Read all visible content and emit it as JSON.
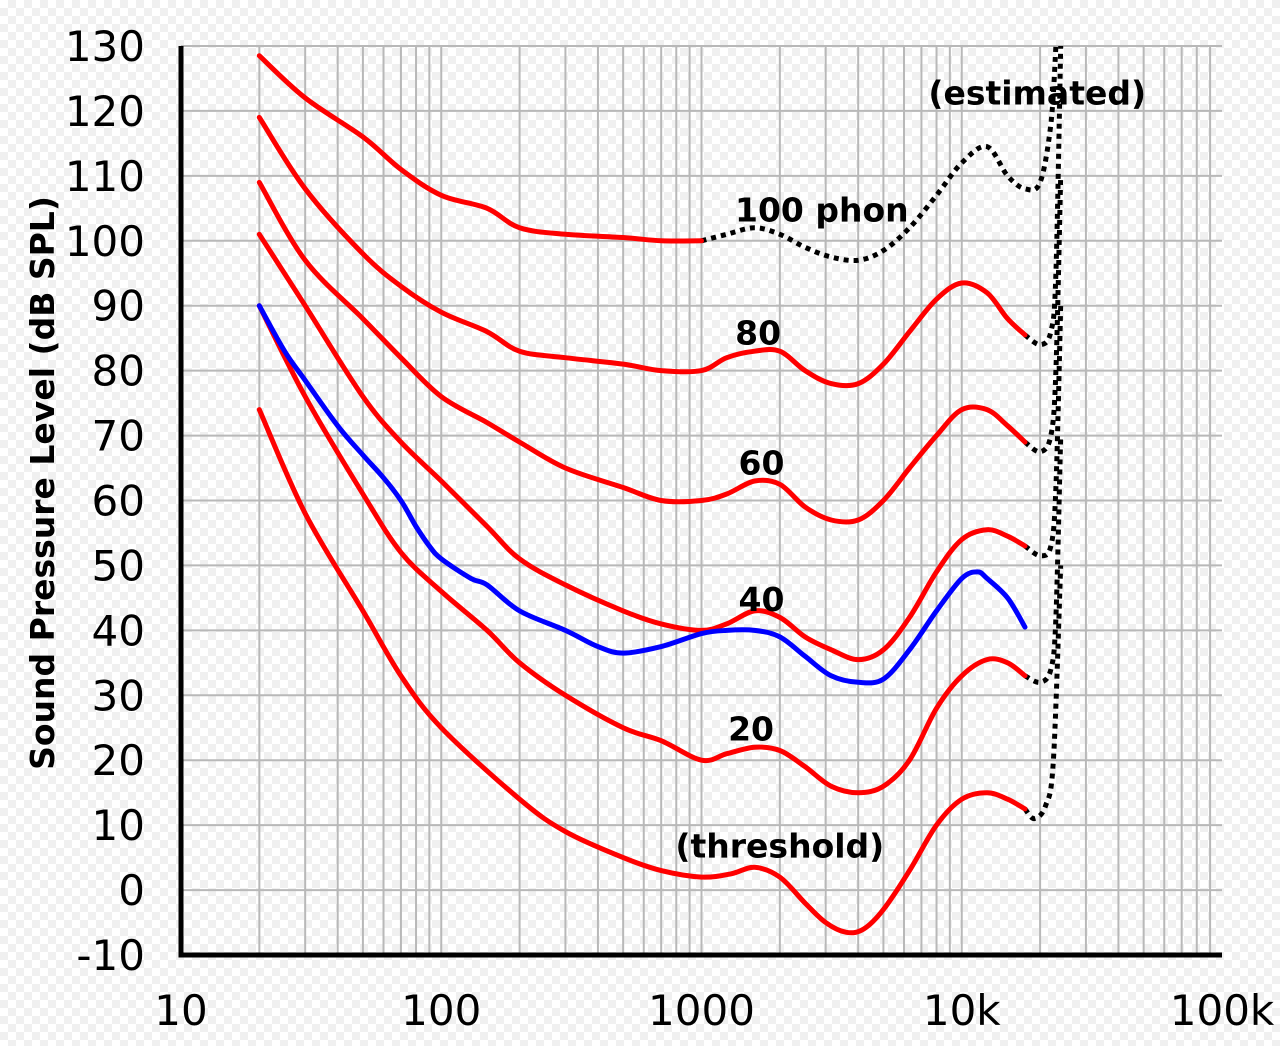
{
  "chart_data": {
    "type": "line",
    "title": "",
    "xlabel": "",
    "ylabel": "Sound Pressure Level (dB SPL)",
    "x_scale": "log",
    "xlim": [
      10,
      100000
    ],
    "ylim": [
      -10,
      130
    ],
    "grid": true,
    "x_ticks": [
      {
        "value": 10,
        "label": "10"
      },
      {
        "value": 100,
        "label": "100"
      },
      {
        "value": 1000,
        "label": "1000"
      },
      {
        "value": 10000,
        "label": "10k"
      },
      {
        "value": 100000,
        "label": "100k"
      }
    ],
    "y_ticks": [
      {
        "value": 130,
        "label": "130"
      },
      {
        "value": 120,
        "label": "120"
      },
      {
        "value": 110,
        "label": "110"
      },
      {
        "value": 100,
        "label": "100"
      },
      {
        "value": 90,
        "label": "90"
      },
      {
        "value": 80,
        "label": "80"
      },
      {
        "value": 70,
        "label": "70"
      },
      {
        "value": 60,
        "label": "60"
      },
      {
        "value": 50,
        "label": "50"
      },
      {
        "value": 40,
        "label": "40"
      },
      {
        "value": 30,
        "label": "30"
      },
      {
        "value": 20,
        "label": "20"
      },
      {
        "value": 10,
        "label": "10"
      },
      {
        "value": 0,
        "label": "0"
      },
      {
        "value": -10,
        "label": "-10"
      }
    ],
    "series": [
      {
        "name": "threshold",
        "color": "#ff0000",
        "points": [
          [
            20,
            74
          ],
          [
            30,
            58
          ],
          [
            50,
            43
          ],
          [
            70,
            33
          ],
          [
            100,
            25
          ],
          [
            200,
            14
          ],
          [
            300,
            9
          ],
          [
            500,
            5
          ],
          [
            700,
            3
          ],
          [
            1000,
            2
          ],
          [
            1300,
            2.5
          ],
          [
            1600,
            3.5
          ],
          [
            2000,
            2
          ],
          [
            2500,
            -2
          ],
          [
            3000,
            -5
          ],
          [
            3600,
            -6.5
          ],
          [
            4200,
            -6
          ],
          [
            5000,
            -3
          ],
          [
            6300,
            3
          ],
          [
            8000,
            10
          ],
          [
            10000,
            14
          ],
          [
            12500,
            15
          ],
          [
            15000,
            14
          ],
          [
            17500,
            12.5
          ]
        ]
      },
      {
        "name": "20 phon",
        "color": "#ff0000",
        "points": [
          [
            20,
            90
          ],
          [
            30,
            76
          ],
          [
            50,
            61
          ],
          [
            70,
            52
          ],
          [
            100,
            46
          ],
          [
            150,
            40
          ],
          [
            200,
            35
          ],
          [
            300,
            30
          ],
          [
            500,
            25
          ],
          [
            700,
            23
          ],
          [
            1000,
            20
          ],
          [
            1250,
            21
          ],
          [
            1600,
            22
          ],
          [
            2000,
            21.5
          ],
          [
            2500,
            19
          ],
          [
            3150,
            16
          ],
          [
            4000,
            15
          ],
          [
            5000,
            16
          ],
          [
            6300,
            20
          ],
          [
            8000,
            28
          ],
          [
            10000,
            33
          ],
          [
            12500,
            35.5
          ],
          [
            15000,
            35
          ],
          [
            17500,
            33
          ]
        ]
      },
      {
        "name": "40 phon",
        "color": "#ff0000",
        "points": [
          [
            20,
            101
          ],
          [
            30,
            90
          ],
          [
            50,
            76
          ],
          [
            70,
            69
          ],
          [
            100,
            63
          ],
          [
            150,
            56
          ],
          [
            200,
            51
          ],
          [
            300,
            47
          ],
          [
            500,
            43
          ],
          [
            700,
            41
          ],
          [
            1000,
            40
          ],
          [
            1250,
            41
          ],
          [
            1600,
            43
          ],
          [
            2000,
            42
          ],
          [
            2500,
            39
          ],
          [
            3150,
            37
          ],
          [
            4000,
            35.5
          ],
          [
            5000,
            37
          ],
          [
            6300,
            42
          ],
          [
            8000,
            49
          ],
          [
            10000,
            54
          ],
          [
            12500,
            55.5
          ],
          [
            15000,
            54.5
          ],
          [
            17500,
            53
          ]
        ]
      },
      {
        "name": "60 phon",
        "color": "#ff0000",
        "points": [
          [
            20,
            109
          ],
          [
            30,
            97
          ],
          [
            50,
            88
          ],
          [
            70,
            82
          ],
          [
            100,
            76
          ],
          [
            150,
            72
          ],
          [
            200,
            69
          ],
          [
            300,
            65
          ],
          [
            500,
            62
          ],
          [
            700,
            60
          ],
          [
            1000,
            60
          ],
          [
            1250,
            61
          ],
          [
            1600,
            63
          ],
          [
            2000,
            62.5
          ],
          [
            2500,
            59
          ],
          [
            3150,
            57
          ],
          [
            4000,
            57
          ],
          [
            5000,
            60
          ],
          [
            6300,
            65
          ],
          [
            8000,
            70
          ],
          [
            10000,
            74
          ],
          [
            12500,
            74
          ],
          [
            15000,
            71.5
          ],
          [
            17500,
            69
          ]
        ]
      },
      {
        "name": "80 phon",
        "color": "#ff0000",
        "points": [
          [
            20,
            119
          ],
          [
            30,
            108
          ],
          [
            50,
            98
          ],
          [
            70,
            93
          ],
          [
            100,
            89
          ],
          [
            150,
            86
          ],
          [
            200,
            83
          ],
          [
            300,
            82
          ],
          [
            500,
            81
          ],
          [
            700,
            80
          ],
          [
            1000,
            80
          ],
          [
            1250,
            82
          ],
          [
            1600,
            83
          ],
          [
            2000,
            83
          ],
          [
            2500,
            80
          ],
          [
            3150,
            78
          ],
          [
            4000,
            78
          ],
          [
            5000,
            81
          ],
          [
            6300,
            86
          ],
          [
            8000,
            91
          ],
          [
            10000,
            93.5
          ],
          [
            12500,
            92
          ],
          [
            15000,
            88
          ],
          [
            17500,
            85.5
          ]
        ]
      },
      {
        "name": "100 phon",
        "color": "#ff0000",
        "points": [
          [
            20,
            128.5
          ],
          [
            30,
            122
          ],
          [
            50,
            116
          ],
          [
            70,
            111
          ],
          [
            100,
            107
          ],
          [
            150,
            105
          ],
          [
            200,
            102
          ],
          [
            300,
            101
          ],
          [
            500,
            100.5
          ],
          [
            700,
            100
          ],
          [
            1000,
            100
          ]
        ]
      },
      {
        "name": "100 phon (estimated)",
        "color": "#000000",
        "style": "dotted",
        "points": [
          [
            1000,
            100
          ],
          [
            1250,
            101
          ],
          [
            1600,
            102
          ],
          [
            2000,
            101
          ],
          [
            2500,
            99
          ],
          [
            3150,
            97.5
          ],
          [
            4000,
            97
          ],
          [
            5000,
            98.5
          ],
          [
            6300,
            102
          ],
          [
            8000,
            107
          ],
          [
            10000,
            112
          ],
          [
            12500,
            114.5
          ],
          [
            15000,
            110
          ],
          [
            17500,
            108
          ],
          [
            20000,
            109
          ],
          [
            22000,
            118
          ],
          [
            23000,
            130
          ]
        ]
      },
      {
        "name": "80 phon (estimated)",
        "color": "#000000",
        "style": "dotted",
        "points": [
          [
            17500,
            85.5
          ],
          [
            20000,
            84
          ],
          [
            22000,
            86
          ],
          [
            23000,
            95
          ],
          [
            24000,
            130
          ]
        ]
      },
      {
        "name": "60 phon (estimated)",
        "color": "#000000",
        "style": "dotted",
        "points": [
          [
            17500,
            69
          ],
          [
            20000,
            67.5
          ],
          [
            22000,
            70
          ],
          [
            23000,
            80
          ],
          [
            24000,
            110
          ]
        ]
      },
      {
        "name": "40 phon (estimated)",
        "color": "#000000",
        "style": "dotted",
        "points": [
          [
            17500,
            53
          ],
          [
            20000,
            51.5
          ],
          [
            22000,
            53
          ],
          [
            23000,
            62
          ],
          [
            24000,
            90
          ]
        ]
      },
      {
        "name": "20 phon (estimated)",
        "color": "#000000",
        "style": "dotted",
        "points": [
          [
            17500,
            33
          ],
          [
            20000,
            32
          ],
          [
            22000,
            34
          ],
          [
            23000,
            42
          ],
          [
            24000,
            70
          ]
        ]
      },
      {
        "name": "threshold (estimated)",
        "color": "#000000",
        "style": "dotted",
        "points": [
          [
            17500,
            12.5
          ],
          [
            19000,
            11
          ],
          [
            21000,
            13
          ],
          [
            22500,
            20
          ],
          [
            24000,
            50
          ]
        ]
      },
      {
        "name": "40 phon (blue)",
        "color": "#0000ff",
        "points": [
          [
            20,
            90
          ],
          [
            25,
            83
          ],
          [
            30,
            78.5
          ],
          [
            40,
            71.5
          ],
          [
            50,
            67
          ],
          [
            60,
            63.5
          ],
          [
            70,
            60
          ],
          [
            80,
            56
          ],
          [
            90,
            53
          ],
          [
            100,
            51
          ],
          [
            130,
            48
          ],
          [
            150,
            47
          ],
          [
            200,
            43
          ],
          [
            300,
            40
          ],
          [
            400,
            37.5
          ],
          [
            500,
            36.5
          ],
          [
            700,
            37.5
          ],
          [
            1000,
            39.5
          ],
          [
            1250,
            40
          ],
          [
            1600,
            40
          ],
          [
            2000,
            39
          ],
          [
            2500,
            36
          ],
          [
            3150,
            33
          ],
          [
            4000,
            32
          ],
          [
            5000,
            32.5
          ],
          [
            6300,
            37
          ],
          [
            8000,
            43
          ],
          [
            10000,
            48
          ],
          [
            11500,
            49
          ],
          [
            12500,
            48
          ],
          [
            15000,
            45
          ],
          [
            17500,
            40.5
          ]
        ]
      }
    ],
    "annotations": [
      {
        "text": "(estimated)",
        "x": 19500,
        "y": 121
      },
      {
        "text": "100 phon",
        "x": 2900,
        "y": 103
      },
      {
        "text": "80",
        "x": 1650,
        "y": 84
      },
      {
        "text": "60",
        "x": 1700,
        "y": 64
      },
      {
        "text": "40",
        "x": 1700,
        "y": 43
      },
      {
        "text": "20",
        "x": 1550,
        "y": 23
      },
      {
        "text": "(threshold)",
        "x": 2000,
        "y": 5
      }
    ]
  }
}
